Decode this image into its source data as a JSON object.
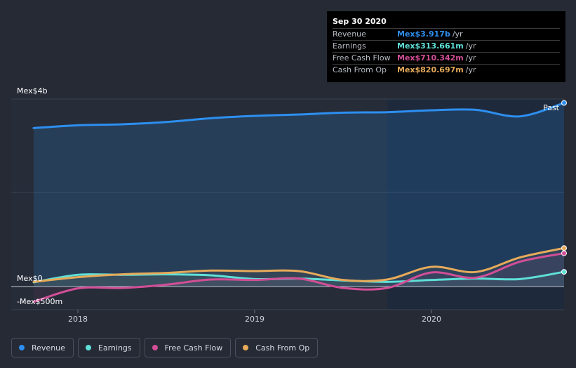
{
  "chart_data": {
    "type": "line",
    "title": "",
    "y_unit": "Mex$",
    "ylim": [
      -500,
      4000
    ],
    "y_tick_labels": [
      {
        "value": 4000,
        "label": "Mex$4b"
      },
      {
        "value": 0,
        "label": "Mex$0"
      },
      {
        "value": -500,
        "label": "-Mex$500m"
      }
    ],
    "x_ticks": [
      {
        "x": 2018.0,
        "label": "2018"
      },
      {
        "x": 2019.0,
        "label": "2019"
      },
      {
        "x": 2020.0,
        "label": "2020"
      }
    ],
    "xlim": [
      2017.75,
      2020.75
    ],
    "past_label": "Past",
    "forecast_shade_start": 2019.75,
    "series": [
      {
        "name": "Revenue",
        "color": "#2d8ff0",
        "fill": true,
        "x": [
          2017.75,
          2018.0,
          2018.25,
          2018.5,
          2018.75,
          2019.0,
          2019.25,
          2019.5,
          2019.75,
          2020.0,
          2020.25,
          2020.5,
          2020.75
        ],
        "values": [
          3380,
          3440,
          3460,
          3510,
          3590,
          3640,
          3670,
          3710,
          3720,
          3760,
          3770,
          3630,
          3917
        ]
      },
      {
        "name": "Earnings",
        "color": "#5fe0d8",
        "fill": false,
        "x": [
          2017.75,
          2018.0,
          2018.25,
          2018.5,
          2018.75,
          2019.0,
          2019.25,
          2019.5,
          2019.75,
          2020.0,
          2020.25,
          2020.5,
          2020.75
        ],
        "values": [
          90,
          250,
          250,
          260,
          240,
          160,
          170,
          130,
          100,
          140,
          170,
          160,
          313.661
        ]
      },
      {
        "name": "Free Cash Flow",
        "color": "#d24e96",
        "fill": false,
        "x": [
          2017.75,
          2018.0,
          2018.25,
          2018.5,
          2018.75,
          2019.0,
          2019.25,
          2019.5,
          2019.75,
          2020.0,
          2020.25,
          2020.5,
          2020.75
        ],
        "values": [
          -330,
          -40,
          -30,
          40,
          150,
          140,
          170,
          -30,
          -30,
          300,
          190,
          530,
          710.342
        ]
      },
      {
        "name": "Cash From Op",
        "color": "#e6aa5a",
        "fill": false,
        "x": [
          2017.75,
          2018.0,
          2018.25,
          2018.5,
          2018.75,
          2019.0,
          2019.25,
          2019.5,
          2019.75,
          2020.0,
          2020.25,
          2020.5,
          2020.75
        ],
        "values": [
          100,
          200,
          260,
          290,
          340,
          330,
          330,
          140,
          150,
          420,
          310,
          620,
          820.697
        ]
      }
    ]
  },
  "tooltip": {
    "date": "Sep 30 2020",
    "rows": [
      {
        "label": "Revenue",
        "value": "Mex$3.917b",
        "unit": "/yr",
        "color": "#2d8ff0"
      },
      {
        "label": "Earnings",
        "value": "Mex$313.661m",
        "unit": "/yr",
        "color": "#5fe0d8"
      },
      {
        "label": "Free Cash Flow",
        "value": "Mex$710.342m",
        "unit": "/yr",
        "color": "#d24e96"
      },
      {
        "label": "Cash From Op",
        "value": "Mex$820.697m",
        "unit": "/yr",
        "color": "#e6aa5a"
      }
    ]
  },
  "legend": [
    {
      "label": "Revenue",
      "color": "#2d8ff0"
    },
    {
      "label": "Earnings",
      "color": "#5fe0d8"
    },
    {
      "label": "Free Cash Flow",
      "color": "#d24e96"
    },
    {
      "label": "Cash From Op",
      "color": "#e6aa5a"
    }
  ]
}
